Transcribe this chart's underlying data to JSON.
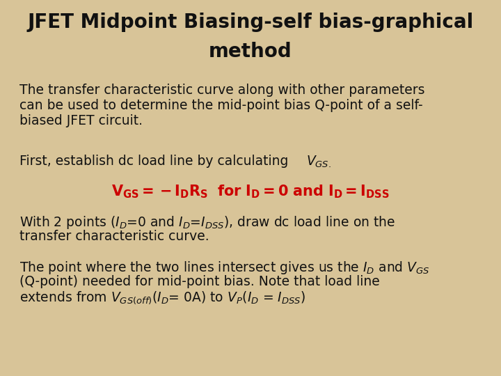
{
  "title_line1": "JFET Midpoint Biasing-self bias-graphical",
  "title_line2": "method",
  "title_fontsize": 20,
  "title_color": "#111111",
  "bg_color": "#d8c498",
  "text_color": "#111111",
  "red_color": "#cc0000",
  "body_fontsize": 13.5,
  "red_fontsize": 15,
  "para1_line1": "The transfer characteristic curve along with other parameters",
  "para1_line2": "can be used to determine the mid-point bias Q-point of a self-",
  "para1_line3": "biased JFET circuit.",
  "para2": "First, establish dc load line by calculating ",
  "para2_vgs": "$\\it{V}_{GS.}$",
  "para3": "$\\mathbf{V_{GS} = -I_DR_S\\ \\ for\\ I_D{=}0\\ and\\ I_D{=}I_{DSS}}$",
  "para4_line1": "With 2 points ($I_D$=0 and $I_D$=$I_{DSS}$), draw dc load line on the",
  "para4_line2": "transfer characteristic curve.",
  "para5_line1": "The point where the two lines intersect gives us the $\\it{I_D}$ and $\\it{V_{GS}}$",
  "para5_line2": "(Q-point) needed for mid-point bias. Note that load line",
  "para5_line3": "extends from $\\it{V_{GS(off)}}$($\\it{I_D}$= 0A) to $\\it{V_P}$($\\it{I_D}$ = $\\it{I_{DSS}}$)"
}
